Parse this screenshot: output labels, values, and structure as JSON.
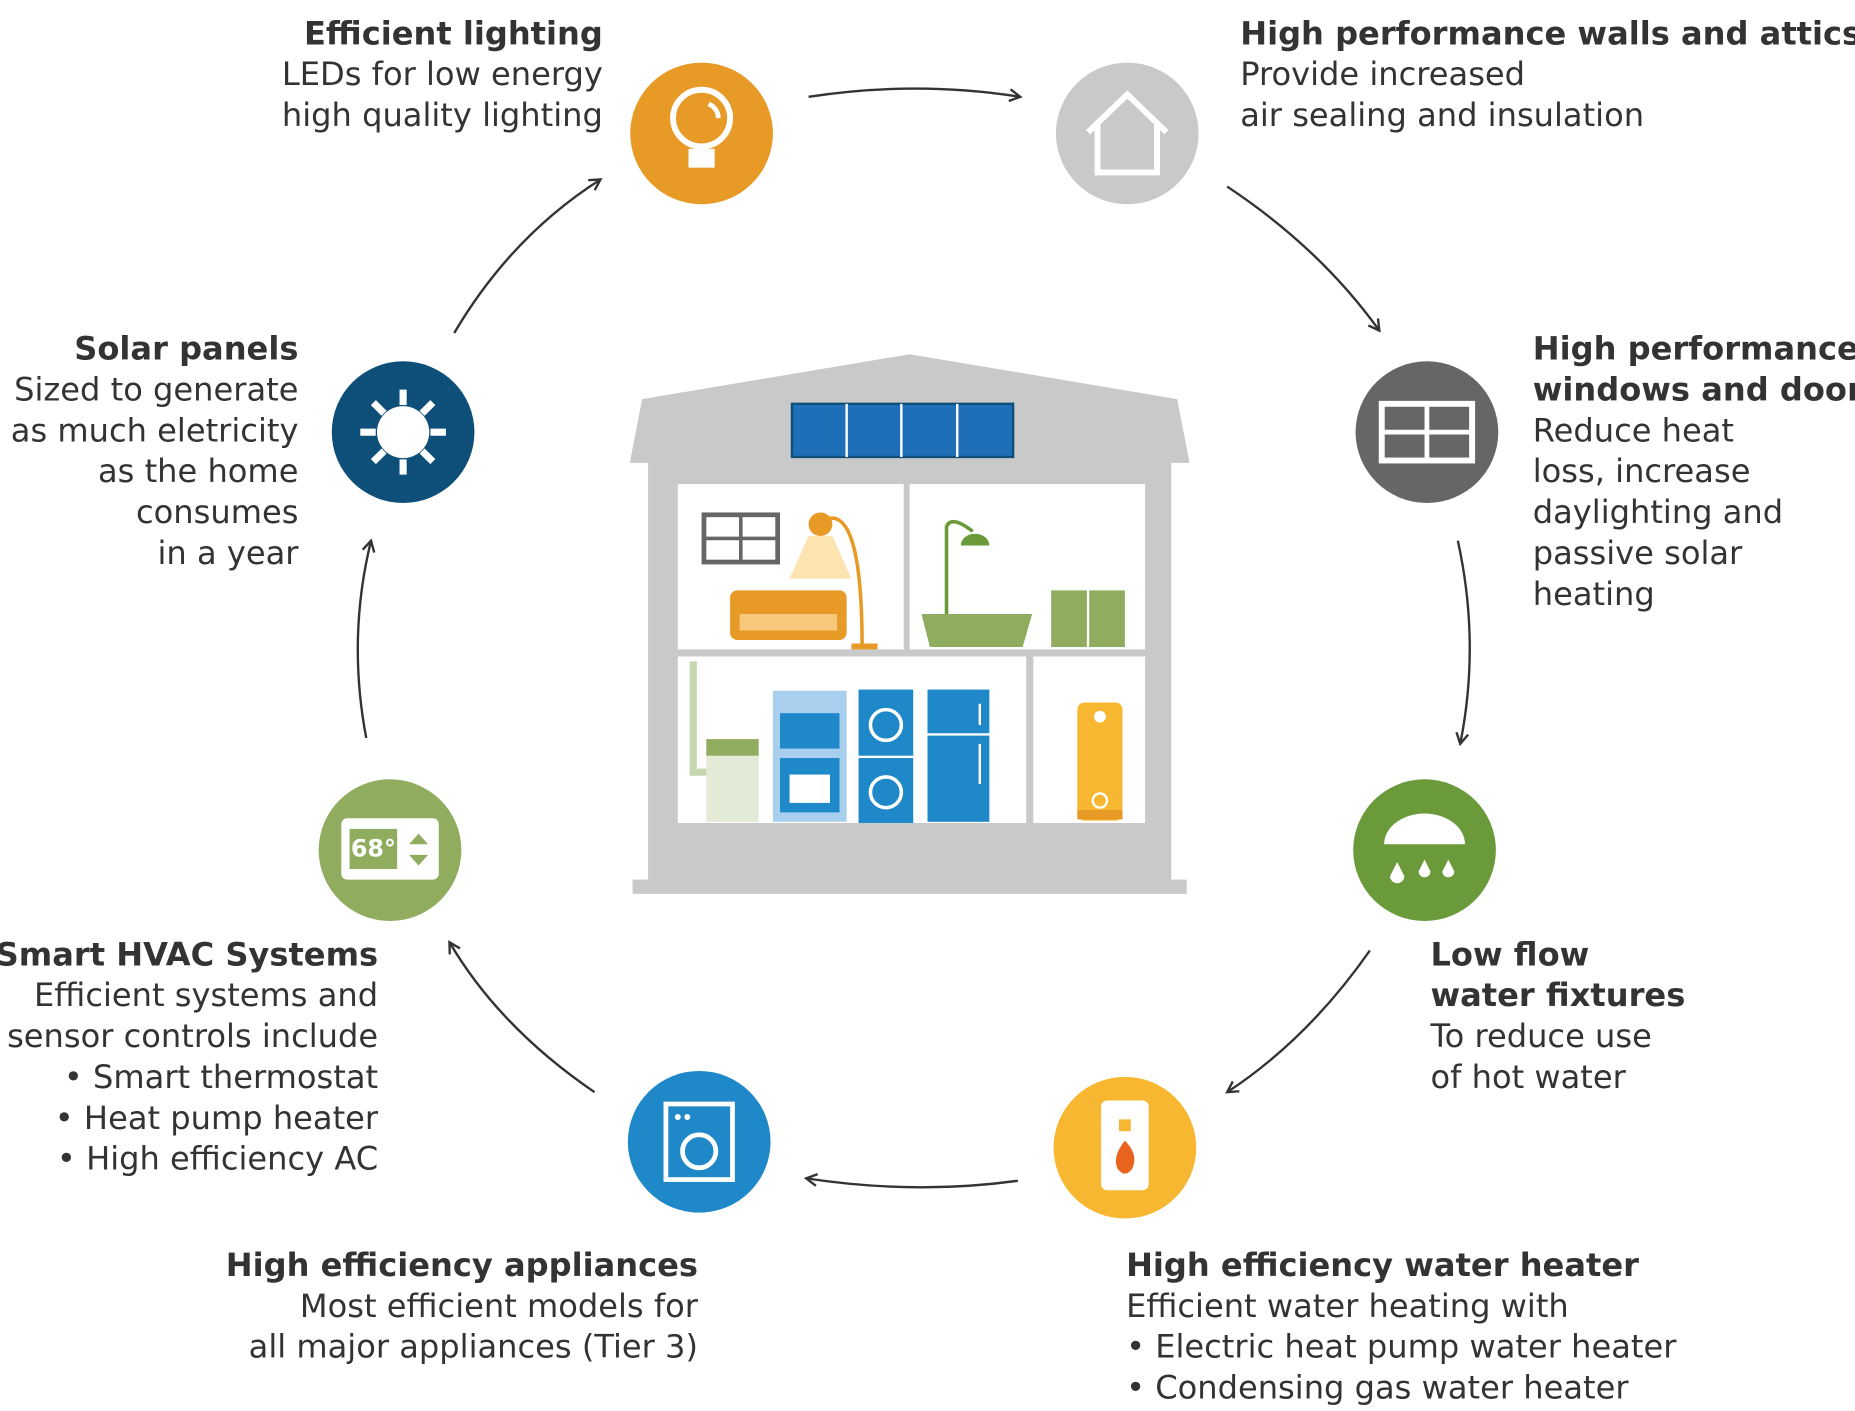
{
  "items": [
    {
      "title": [
        "Efficient lighting"
      ],
      "lines": [
        "LEDs for low energy",
        "high quality lighting"
      ]
    },
    {
      "title": [
        "High performance walls and attics"
      ],
      "lines": [
        "Provide increased",
        "air sealing and insulation"
      ]
    },
    {
      "title": [
        "High performance",
        "windows and doors"
      ],
      "lines": [
        "Reduce heat",
        "loss, increase",
        "daylighting and",
        "passive solar",
        "heating"
      ]
    },
    {
      "title": [
        "Low flow",
        "water fixtures"
      ],
      "lines": [
        "To reduce use",
        "of hot water"
      ]
    },
    {
      "title": [
        "High efficiency water heater"
      ],
      "lines": [
        "Efficient water heating with",
        "• Electric heat pump water heater",
        "• Condensing gas water heater"
      ]
    },
    {
      "title": [
        "High efficiency appliances"
      ],
      "lines": [
        "Most efficient models for",
        "all major appliances (Tier 3)"
      ]
    },
    {
      "title": [
        "Smart HVAC Systems"
      ],
      "lines": [
        "Efficient systems and",
        "sensor controls include",
        "• Smart thermostat",
        "• Heat pump heater",
        "• High efficiency AC"
      ]
    },
    {
      "title": [
        "Solar panels"
      ],
      "lines": [
        "Sized to generate",
        "as much eletricity",
        "as the home",
        "consumes",
        "in a year"
      ]
    }
  ],
  "thermostat": "68°"
}
